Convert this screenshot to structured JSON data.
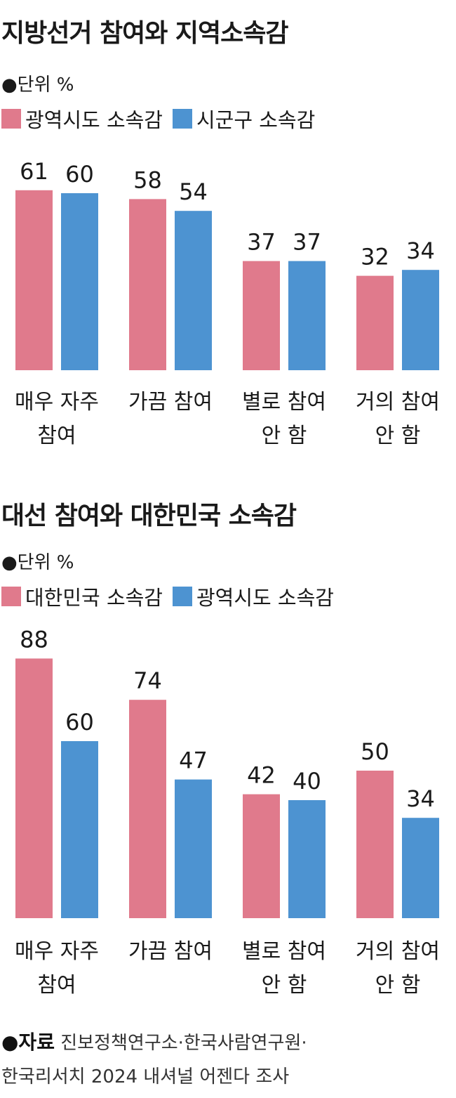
{
  "colors": {
    "pink": "#e07a8c",
    "blue": "#4d93d1"
  },
  "unit_label": "●단위 %",
  "chart_data": [
    {
      "type": "bar",
      "title": "지방선거 참여와 지역소속감",
      "categories": [
        [
          "매우 자주",
          "참여"
        ],
        [
          "가끔 참여"
        ],
        [
          "별로 참여",
          "안 함"
        ],
        [
          "거의 참여",
          "안 함"
        ]
      ],
      "series": [
        {
          "name": "광역시도 소속감",
          "color": "#e07a8c",
          "values": [
            61,
            58,
            37,
            32
          ]
        },
        {
          "name": "시군구 소속감",
          "color": "#4d93d1",
          "values": [
            60,
            54,
            37,
            34
          ]
        }
      ]
    },
    {
      "type": "bar",
      "title": "대선 참여와 대한민국 소속감",
      "categories": [
        [
          "매우 자주",
          "참여"
        ],
        [
          "가끔 참여"
        ],
        [
          "별로 참여",
          "안 함"
        ],
        [
          "거의 참여",
          "안 함"
        ]
      ],
      "series": [
        {
          "name": "대한민국 소속감",
          "color": "#e07a8c",
          "values": [
            88,
            74,
            42,
            50
          ]
        },
        {
          "name": "광역시도 소속감",
          "color": "#4d93d1",
          "values": [
            60,
            47,
            40,
            34
          ]
        }
      ]
    }
  ],
  "source": {
    "label": "●자료",
    "text_line1": "진보정책연구소·한국사람연구원·",
    "text_line2": "한국리서치 2024 내셔널 어젠다 조사"
  }
}
